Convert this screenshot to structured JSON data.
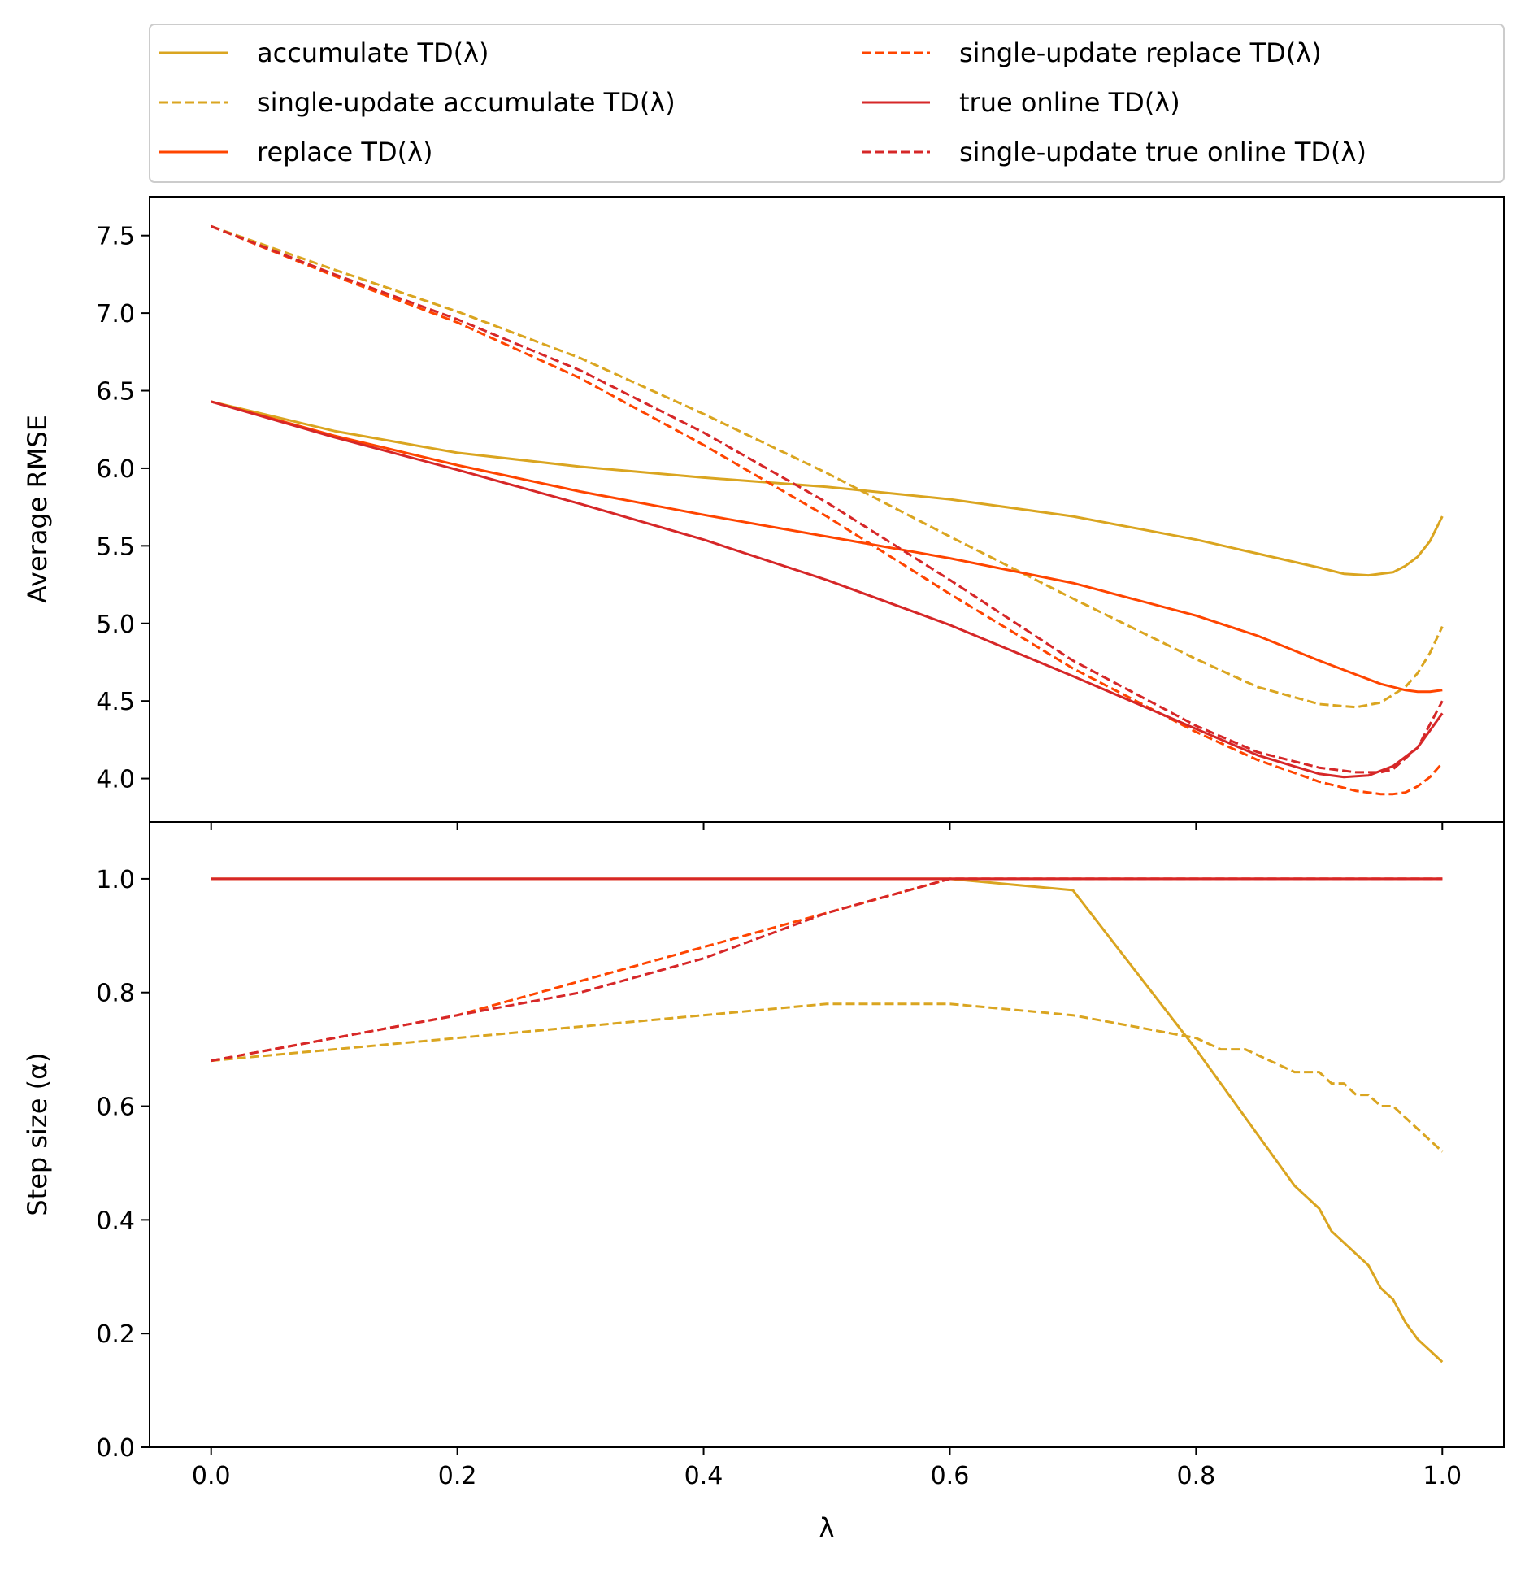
{
  "chart_data": [
    {
      "id": "rmse",
      "type": "line",
      "xlabel": "",
      "ylabel": "Average RMSE",
      "ylim": [
        3.72,
        7.75
      ],
      "xlim": [
        -0.05,
        1.05
      ],
      "yticks": [
        "4.0",
        "4.5",
        "5.0",
        "5.5",
        "6.0",
        "6.5",
        "7.0",
        "7.5"
      ],
      "x_tick_labels_shown": false,
      "legend_position": "top (above plots), 2 columns",
      "series": [
        {
          "name": "accumulate TD(λ)",
          "color": "#DAA520",
          "dash": "solid",
          "x": [
            0,
            0.1,
            0.2,
            0.3,
            0.4,
            0.5,
            0.6,
            0.7,
            0.8,
            0.85,
            0.9,
            0.92,
            0.94,
            0.96,
            0.97,
            0.98,
            0.99,
            1.0
          ],
          "y": [
            6.43,
            6.24,
            6.1,
            6.01,
            5.94,
            5.88,
            5.8,
            5.69,
            5.54,
            5.45,
            5.36,
            5.32,
            5.31,
            5.33,
            5.37,
            5.43,
            5.53,
            5.69
          ]
        },
        {
          "name": "single-update accumulate TD(λ)",
          "color": "#DAA520",
          "dash": "dashed",
          "x": [
            0,
            0.1,
            0.2,
            0.3,
            0.4,
            0.5,
            0.6,
            0.7,
            0.8,
            0.85,
            0.9,
            0.93,
            0.95,
            0.97,
            0.98,
            0.99,
            1.0
          ],
          "y": [
            7.56,
            7.28,
            7.01,
            6.71,
            6.35,
            5.97,
            5.56,
            5.16,
            4.77,
            4.59,
            4.48,
            4.46,
            4.49,
            4.59,
            4.68,
            4.81,
            4.98
          ]
        },
        {
          "name": "replace TD(λ)",
          "color": "#FF4500",
          "dash": "solid",
          "x": [
            0,
            0.1,
            0.2,
            0.3,
            0.4,
            0.5,
            0.6,
            0.7,
            0.8,
            0.85,
            0.9,
            0.95,
            0.97,
            0.98,
            0.99,
            1.0
          ],
          "y": [
            6.43,
            6.21,
            6.02,
            5.85,
            5.7,
            5.56,
            5.42,
            5.26,
            5.05,
            4.92,
            4.76,
            4.61,
            4.57,
            4.56,
            4.56,
            4.57
          ]
        },
        {
          "name": "single-update replace TD(λ)",
          "color": "#FF4500",
          "dash": "dashed",
          "x": [
            0,
            0.1,
            0.2,
            0.3,
            0.4,
            0.5,
            0.6,
            0.7,
            0.8,
            0.85,
            0.9,
            0.93,
            0.95,
            0.96,
            0.97,
            0.98,
            0.99,
            1.0
          ],
          "y": [
            7.56,
            7.24,
            6.94,
            6.58,
            6.15,
            5.69,
            5.19,
            4.71,
            4.3,
            4.12,
            3.98,
            3.92,
            3.9,
            3.9,
            3.91,
            3.95,
            4.01,
            4.1
          ]
        },
        {
          "name": "true online TD(λ)",
          "color": "#D62728",
          "dash": "solid",
          "x": [
            0,
            0.1,
            0.2,
            0.3,
            0.4,
            0.5,
            0.6,
            0.7,
            0.8,
            0.85,
            0.9,
            0.92,
            0.94,
            0.96,
            0.98,
            1.0
          ],
          "y": [
            6.43,
            6.2,
            5.99,
            5.77,
            5.54,
            5.28,
            4.99,
            4.66,
            4.32,
            4.15,
            4.03,
            4.01,
            4.02,
            4.08,
            4.2,
            4.42
          ]
        },
        {
          "name": "single-update true online TD(λ)",
          "color": "#D62728",
          "dash": "dashed",
          "x": [
            0,
            0.1,
            0.2,
            0.3,
            0.4,
            0.5,
            0.6,
            0.7,
            0.8,
            0.85,
            0.9,
            0.93,
            0.95,
            0.96,
            0.98,
            1.0
          ],
          "y": [
            7.56,
            7.25,
            6.96,
            6.63,
            6.23,
            5.78,
            5.28,
            4.76,
            4.34,
            4.17,
            4.07,
            4.04,
            4.04,
            4.06,
            4.2,
            4.5
          ]
        }
      ]
    },
    {
      "id": "stepsize",
      "type": "line",
      "xlabel": "λ",
      "ylabel": "Step size (α)",
      "ylim": [
        0.0,
        1.1
      ],
      "xlim": [
        -0.05,
        1.05
      ],
      "yticks": [
        "0.0",
        "0.2",
        "0.4",
        "0.6",
        "0.8",
        "1.0"
      ],
      "xticks": [
        "0.0",
        "0.2",
        "0.4",
        "0.6",
        "0.8",
        "1.0"
      ],
      "series": [
        {
          "name": "accumulate TD(λ)",
          "color": "#DAA520",
          "dash": "solid",
          "x": [
            0,
            0.6,
            0.7,
            0.8,
            0.88,
            0.9,
            0.91,
            0.93,
            0.94,
            0.95,
            0.96,
            0.97,
            0.98,
            1.0
          ],
          "y": [
            1.0,
            1.0,
            0.98,
            0.7,
            0.46,
            0.42,
            0.38,
            0.34,
            0.32,
            0.28,
            0.26,
            0.22,
            0.19,
            0.15
          ]
        },
        {
          "name": "single-update accumulate TD(λ)",
          "color": "#DAA520",
          "dash": "dashed",
          "x": [
            0,
            0.5,
            0.6,
            0.7,
            0.8,
            0.82,
            0.84,
            0.88,
            0.9,
            0.91,
            0.92,
            0.93,
            0.94,
            0.95,
            0.96,
            0.97,
            1.0
          ],
          "y": [
            0.68,
            0.78,
            0.78,
            0.76,
            0.72,
            0.7,
            0.7,
            0.66,
            0.66,
            0.64,
            0.64,
            0.62,
            0.62,
            0.6,
            0.6,
            0.58,
            0.52
          ]
        },
        {
          "name": "replace TD(λ)",
          "color": "#FF4500",
          "dash": "solid",
          "x": [
            0,
            1.0
          ],
          "y": [
            1.0,
            1.0
          ]
        },
        {
          "name": "single-update replace TD(λ)",
          "color": "#FF4500",
          "dash": "dashed",
          "x": [
            0,
            0.1,
            0.2,
            0.3,
            0.4,
            0.5,
            0.6,
            1.0
          ],
          "y": [
            0.68,
            0.72,
            0.76,
            0.82,
            0.88,
            0.94,
            1.0,
            1.0
          ]
        },
        {
          "name": "true online TD(λ)",
          "color": "#D62728",
          "dash": "solid",
          "x": [
            0,
            1.0
          ],
          "y": [
            1.0,
            1.0
          ]
        },
        {
          "name": "single-update true online TD(λ)",
          "color": "#D62728",
          "dash": "dashed",
          "x": [
            0,
            0.1,
            0.2,
            0.3,
            0.4,
            0.5,
            0.6,
            1.0
          ],
          "y": [
            0.68,
            0.72,
            0.76,
            0.8,
            0.86,
            0.94,
            1.0,
            1.0
          ]
        }
      ]
    }
  ]
}
